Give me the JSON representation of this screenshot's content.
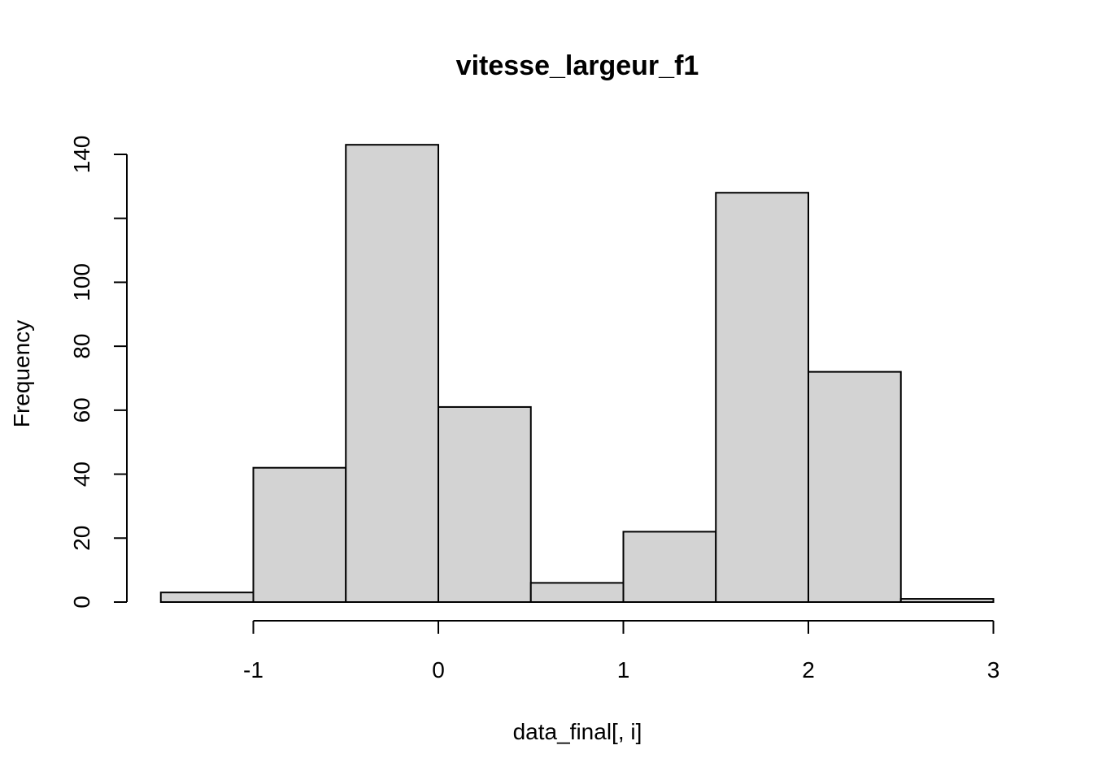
{
  "chart_data": {
    "type": "bar",
    "subtype": "histogram",
    "title": "vitesse_largeur_f1",
    "xlabel": "data_final[, i]",
    "ylabel": "Frequency",
    "bins": [
      {
        "x0": -1.5,
        "x1": -1.0,
        "count": 3
      },
      {
        "x0": -1.0,
        "x1": -0.5,
        "count": 42
      },
      {
        "x0": -0.5,
        "x1": 0.0,
        "count": 143
      },
      {
        "x0": 0.0,
        "x1": 0.5,
        "count": 61
      },
      {
        "x0": 0.5,
        "x1": 1.0,
        "count": 6
      },
      {
        "x0": 1.0,
        "x1": 1.5,
        "count": 22
      },
      {
        "x0": 1.5,
        "x1": 2.0,
        "count": 128
      },
      {
        "x0": 2.0,
        "x1": 2.5,
        "count": 72
      },
      {
        "x0": 2.5,
        "x1": 3.0,
        "count": 1
      }
    ],
    "xlim": [
      -1.5,
      3.0
    ],
    "ylim": [
      0,
      143
    ],
    "x_ticks": [
      -1,
      0,
      1,
      2,
      3
    ],
    "x_tick_labels": [
      "-1",
      "0",
      "1",
      "2",
      "3"
    ],
    "y_ticks": [
      0,
      20,
      40,
      60,
      80,
      100,
      120,
      140
    ],
    "y_tick_labels": [
      "0",
      "20",
      "40",
      "60",
      "80",
      "100",
      "",
      "140"
    ],
    "bar_color": "#d3d3d3",
    "edge_color": "#000000",
    "grid": false,
    "legend": "none"
  }
}
